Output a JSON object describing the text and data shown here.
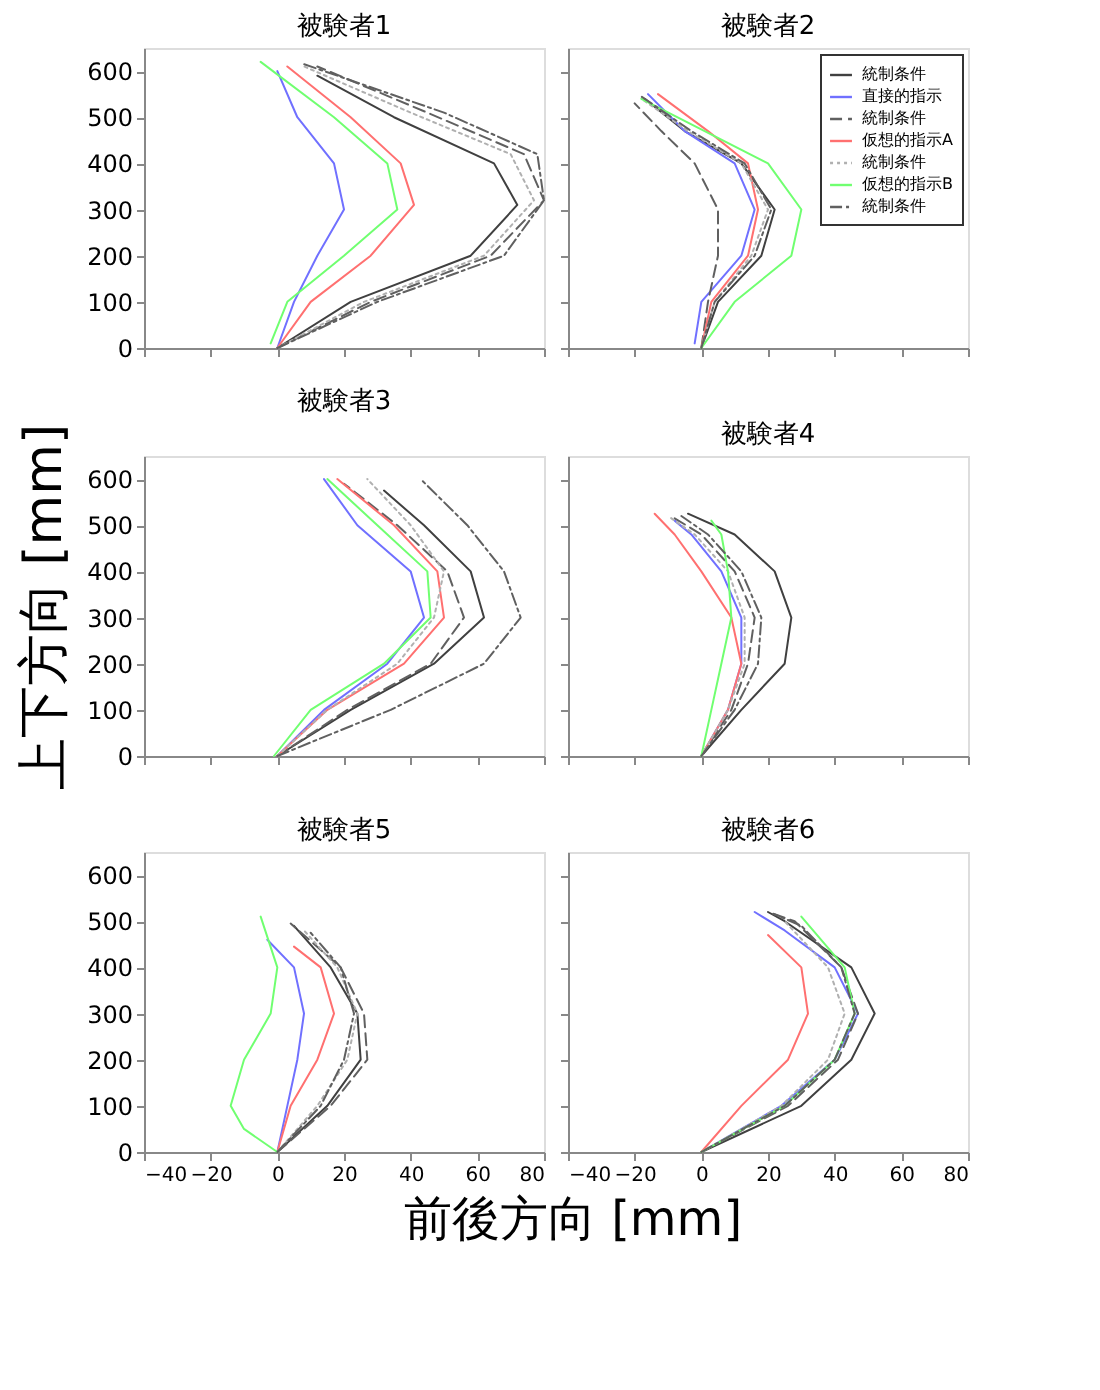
{
  "chart_data": [
    {
      "type": "line",
      "title": "被験者1",
      "xlim": [
        -40,
        80
      ],
      "ylim": [
        0,
        650
      ],
      "xticks": [
        -40,
        -20,
        0,
        20,
        40,
        60,
        80
      ],
      "yticks": [
        0,
        100,
        200,
        300,
        400,
        500,
        600
      ],
      "tick_labels": "y",
      "grid": false,
      "series": [
        {
          "color": "#404040",
          "line_style": "solid",
          "x": [
            0,
            22,
            58,
            72,
            65,
            35,
            12
          ],
          "values": [
            0,
            100,
            200,
            310,
            400,
            500,
            590
          ]
        },
        {
          "color": "#7070ff",
          "line_style": "solid",
          "x": [
            0,
            5,
            12,
            20,
            17,
            6,
            0
          ],
          "values": [
            0,
            100,
            200,
            300,
            400,
            500,
            600
          ]
        },
        {
          "color": "#606060",
          "line_style": "dashed",
          "x": [
            0,
            28,
            64,
            80,
            74,
            45,
            12
          ],
          "values": [
            0,
            100,
            200,
            320,
            420,
            510,
            610
          ]
        },
        {
          "color": "#ff7070",
          "line_style": "solid",
          "x": [
            0,
            10,
            28,
            41,
            37,
            22,
            3
          ],
          "values": [
            0,
            100,
            200,
            310,
            400,
            500,
            610
          ]
        },
        {
          "color": "#b0b0b0",
          "line_style": "dotted",
          "x": [
            0,
            26,
            62,
            77,
            70,
            40,
            8
          ],
          "values": [
            0,
            100,
            200,
            320,
            420,
            510,
            610
          ]
        },
        {
          "color": "#70ff70",
          "line_style": "solid",
          "x": [
            -2,
            3,
            20,
            36,
            33,
            17,
            -5
          ],
          "values": [
            10,
            100,
            200,
            300,
            400,
            500,
            620
          ]
        },
        {
          "color": "#606060",
          "line_style": "dashdot",
          "x": [
            0,
            30,
            68,
            80,
            78,
            50,
            8
          ],
          "values": [
            0,
            100,
            200,
            320,
            420,
            510,
            615
          ]
        }
      ]
    },
    {
      "type": "line",
      "title": "被験者2",
      "xlim": [
        -40,
        80
      ],
      "ylim": [
        0,
        650
      ],
      "xticks": [
        -40,
        -20,
        0,
        20,
        40,
        60,
        80
      ],
      "yticks": [
        0,
        100,
        200,
        300,
        400,
        500,
        600
      ],
      "tick_labels": false,
      "grid": false,
      "legend": "top right",
      "series": [
        {
          "name": "統制条件",
          "color": "#404040",
          "line_style": "solid",
          "x": [
            0,
            5,
            18,
            22,
            12,
            -5,
            -17
          ],
          "values": [
            0,
            100,
            200,
            300,
            400,
            470,
            540
          ]
        },
        {
          "name": "直接的指示",
          "color": "#7070ff",
          "line_style": "solid",
          "x": [
            -2,
            0,
            12,
            16,
            10,
            -5,
            -16
          ],
          "values": [
            10,
            100,
            200,
            300,
            400,
            470,
            550
          ]
        },
        {
          "name": "統制条件",
          "color": "#606060",
          "line_style": "dashed",
          "x": [
            0,
            2,
            5,
            5,
            -2,
            -12,
            -20
          ],
          "values": [
            0,
            100,
            200,
            300,
            400,
            470,
            530
          ]
        },
        {
          "name": "仮想的指示A",
          "color": "#ff7070",
          "line_style": "solid",
          "x": [
            0,
            3,
            14,
            17,
            14,
            2,
            -13
          ],
          "values": [
            0,
            100,
            200,
            300,
            400,
            470,
            550
          ]
        },
        {
          "name": "統制条件",
          "color": "#b0b0b0",
          "line_style": "dotted",
          "x": [
            0,
            4,
            15,
            20,
            12,
            -4,
            -18
          ],
          "values": [
            0,
            100,
            200,
            300,
            400,
            470,
            540
          ]
        },
        {
          "name": "仮想的指示B",
          "color": "#70ff70",
          "line_style": "solid",
          "x": [
            0,
            10,
            27,
            30,
            20,
            1,
            -18
          ],
          "values": [
            0,
            100,
            200,
            300,
            400,
            470,
            540
          ]
        },
        {
          "name": "統制条件",
          "color": "#606060",
          "line_style": "dashdot",
          "x": [
            0,
            4,
            16,
            21,
            13,
            -3,
            -18
          ],
          "values": [
            0,
            100,
            200,
            300,
            400,
            470,
            545
          ]
        }
      ]
    },
    {
      "type": "line",
      "title": "被験者3",
      "ylabel": "上下方向 [mm]",
      "xlim": [
        -40,
        80
      ],
      "ylim": [
        0,
        650
      ],
      "xticks": [
        -40,
        -20,
        0,
        20,
        40,
        60,
        80
      ],
      "yticks": [
        0,
        100,
        200,
        300,
        400,
        500,
        600
      ],
      "tick_labels": "y",
      "grid": false,
      "series": [
        {
          "color": "#404040",
          "line_style": "solid",
          "x": [
            0,
            22,
            47,
            62,
            58,
            44,
            32
          ],
          "values": [
            0,
            100,
            200,
            300,
            400,
            500,
            575
          ]
        },
        {
          "color": "#7070ff",
          "line_style": "solid",
          "x": [
            0,
            14,
            33,
            44,
            40,
            24,
            14
          ],
          "values": [
            0,
            100,
            200,
            300,
            400,
            500,
            600
          ]
        },
        {
          "color": "#606060",
          "line_style": "dashed",
          "x": [
            0,
            21,
            46,
            56,
            51,
            36,
            20
          ],
          "values": [
            0,
            100,
            200,
            300,
            400,
            500,
            590
          ]
        },
        {
          "color": "#ff7070",
          "line_style": "solid",
          "x": [
            0,
            15,
            38,
            50,
            48,
            35,
            18
          ],
          "values": [
            0,
            100,
            200,
            300,
            400,
            500,
            600
          ]
        },
        {
          "color": "#b0b0b0",
          "line_style": "dotted",
          "x": [
            0,
            15,
            36,
            47,
            50,
            40,
            27
          ],
          "values": [
            0,
            100,
            200,
            300,
            400,
            500,
            600
          ]
        },
        {
          "color": "#70ff70",
          "line_style": "solid",
          "x": [
            -1,
            10,
            32,
            46,
            45,
            30,
            15
          ],
          "values": [
            0,
            100,
            200,
            300,
            400,
            500,
            600
          ]
        },
        {
          "color": "#606060",
          "line_style": "dashdot",
          "x": [
            0,
            34,
            62,
            73,
            68,
            57,
            43
          ],
          "values": [
            0,
            100,
            200,
            300,
            400,
            500,
            600
          ]
        }
      ]
    },
    {
      "type": "line",
      "title": "被験者4",
      "xlim": [
        -40,
        80
      ],
      "ylim": [
        0,
        650
      ],
      "xticks": [
        -40,
        -20,
        0,
        20,
        40,
        60,
        80
      ],
      "yticks": [
        0,
        100,
        200,
        300,
        400,
        500,
        600
      ],
      "tick_labels": false,
      "grid": false,
      "series": [
        {
          "color": "#404040",
          "line_style": "solid",
          "x": [
            0,
            12,
            25,
            27,
            22,
            10,
            -4
          ],
          "values": [
            0,
            100,
            200,
            300,
            400,
            480,
            525
          ]
        },
        {
          "color": "#7070ff",
          "line_style": "solid",
          "x": [
            0,
            8,
            12,
            12,
            6,
            -3,
            -8
          ],
          "values": [
            0,
            100,
            200,
            300,
            400,
            480,
            510
          ]
        },
        {
          "color": "#606060",
          "line_style": "dashed",
          "x": [
            0,
            9,
            14,
            16,
            10,
            0,
            -8
          ],
          "values": [
            0,
            100,
            200,
            300,
            400,
            480,
            515
          ]
        },
        {
          "color": "#ff7070",
          "line_style": "solid",
          "x": [
            0,
            8,
            12,
            9,
            0,
            -8,
            -14
          ],
          "values": [
            0,
            100,
            200,
            300,
            400,
            480,
            525
          ]
        },
        {
          "color": "#b0b0b0",
          "line_style": "dotted",
          "x": [
            0,
            8,
            13,
            13,
            8,
            -2,
            -10
          ],
          "values": [
            0,
            100,
            200,
            300,
            400,
            480,
            520
          ]
        },
        {
          "color": "#70ff70",
          "line_style": "solid",
          "x": [
            0,
            3,
            6,
            9,
            8,
            6,
            3
          ],
          "values": [
            0,
            100,
            200,
            300,
            400,
            480,
            510
          ]
        },
        {
          "color": "#606060",
          "line_style": "dashdot",
          "x": [
            0,
            10,
            17,
            18,
            12,
            2,
            -6
          ],
          "values": [
            0,
            100,
            200,
            300,
            400,
            480,
            520
          ]
        }
      ]
    },
    {
      "type": "line",
      "title": "被験者5",
      "xlabel": "前後方向 [mm]",
      "xlim": [
        -40,
        80
      ],
      "ylim": [
        0,
        650
      ],
      "xticks": [
        -40,
        -20,
        0,
        20,
        40,
        60,
        80
      ],
      "yticks": [
        0,
        100,
        200,
        300,
        400,
        500,
        600
      ],
      "grid": false,
      "series": [
        {
          "color": "#404040",
          "line_style": "solid",
          "x": [
            0,
            15,
            25,
            24,
            16,
            5
          ],
          "values": [
            0,
            100,
            200,
            300,
            400,
            490
          ]
        },
        {
          "color": "#7070ff",
          "line_style": "solid",
          "x": [
            0,
            3,
            6,
            8,
            5,
            -3
          ],
          "values": [
            0,
            100,
            200,
            300,
            400,
            460
          ]
        },
        {
          "color": "#606060",
          "line_style": "dashed",
          "x": [
            0,
            16,
            27,
            26,
            19,
            4
          ],
          "values": [
            0,
            100,
            200,
            300,
            400,
            495
          ]
        },
        {
          "color": "#ff7070",
          "line_style": "solid",
          "x": [
            0,
            4,
            12,
            17,
            13,
            5
          ],
          "values": [
            0,
            100,
            200,
            300,
            400,
            445
          ]
        },
        {
          "color": "#b0b0b0",
          "line_style": "dotted",
          "x": [
            0,
            12,
            21,
            24,
            18,
            8
          ],
          "values": [
            0,
            100,
            200,
            300,
            400,
            480
          ]
        },
        {
          "color": "#70ff70",
          "line_style": "solid",
          "x": [
            0,
            -10,
            -14,
            -10,
            -2,
            0,
            -5
          ],
          "values": [
            0,
            50,
            100,
            200,
            300,
            400,
            510
          ]
        },
        {
          "color": "#606060",
          "line_style": "dashdot",
          "x": [
            0,
            13,
            20,
            23,
            19,
            10
          ],
          "values": [
            0,
            100,
            200,
            300,
            400,
            475
          ]
        }
      ]
    },
    {
      "type": "line",
      "title": "被験者6",
      "xlim": [
        -40,
        80
      ],
      "ylim": [
        0,
        650
      ],
      "xticks": [
        -40,
        -20,
        0,
        20,
        40,
        60,
        80
      ],
      "yticks": [
        0,
        100,
        200,
        300,
        400,
        500,
        600
      ],
      "tick_labels": "x",
      "grid": false,
      "series": [
        {
          "color": "#404040",
          "line_style": "solid",
          "x": [
            0,
            30,
            45,
            52,
            45,
            25,
            20
          ],
          "values": [
            0,
            100,
            200,
            300,
            400,
            500,
            520
          ]
        },
        {
          "color": "#7070ff",
          "line_style": "solid",
          "x": [
            0,
            24,
            40,
            47,
            40,
            25,
            16
          ],
          "values": [
            0,
            100,
            200,
            300,
            400,
            480,
            520
          ]
        },
        {
          "color": "#606060",
          "line_style": "dashed",
          "x": [
            0,
            26,
            41,
            47,
            42,
            28,
            20
          ],
          "values": [
            0,
            100,
            200,
            300,
            400,
            500,
            520
          ]
        },
        {
          "color": "#ff7070",
          "line_style": "solid",
          "x": [
            0,
            12,
            26,
            32,
            30,
            20
          ],
          "values": [
            0,
            100,
            200,
            300,
            400,
            470
          ]
        },
        {
          "color": "#b0b0b0",
          "line_style": "dotted",
          "x": [
            0,
            24,
            38,
            43,
            38,
            25
          ],
          "values": [
            0,
            100,
            200,
            300,
            400,
            500
          ]
        },
        {
          "color": "#70ff70",
          "line_style": "solid",
          "x": [
            0,
            25,
            40,
            46,
            43,
            30
          ],
          "values": [
            0,
            100,
            200,
            300,
            400,
            510
          ]
        },
        {
          "color": "#606060",
          "line_style": "dashdot",
          "x": [
            0,
            25,
            40,
            46,
            42,
            30,
            22
          ],
          "values": [
            0,
            100,
            200,
            300,
            400,
            490,
            515
          ]
        }
      ]
    }
  ]
}
